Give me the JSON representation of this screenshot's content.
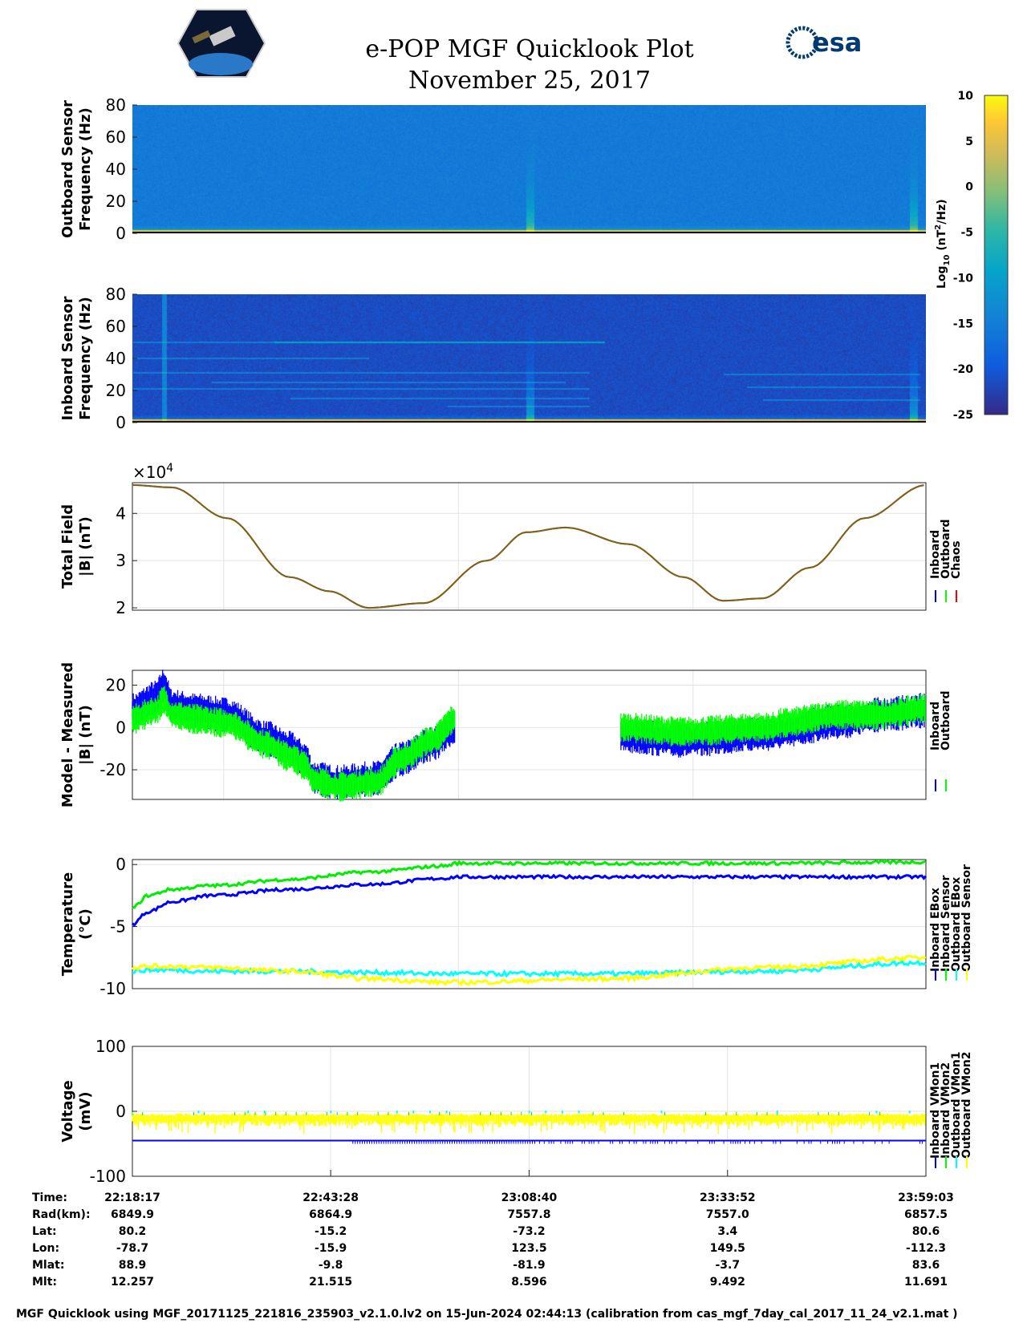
{
  "header": {
    "title": "e-POP MGF Quicklook Plot",
    "date": "November 25, 2017",
    "left_logo": "cassiope-mission-logo",
    "right_logo": "esa",
    "right_logo_text": "esa"
  },
  "colors": {
    "inboard": "#0000ff",
    "outboard": "#00ff00",
    "chaos": "#ff0000",
    "inboard_ebox": "#0000ff",
    "inboard_sensor": "#00ff00",
    "outboard_ebox": "#00ffff",
    "outboard_sensor": "#ffff00"
  },
  "chart_data": [
    {
      "type": "heatmap",
      "name": "outboard-spectrogram",
      "ylabel": "Outboard Sensor\nFrequency (Hz)",
      "ylabel_lines": [
        "Outboard Sensor",
        "Frequency (Hz)"
      ],
      "ylim": [
        0,
        80
      ],
      "yticks": [
        "0",
        "20",
        "40",
        "60",
        "80"
      ],
      "clim": [
        -25,
        10
      ],
      "note": "mostly ~-17 log10 power, strong near 0 Hz, bursts near 23:08 and 23:58"
    },
    {
      "type": "heatmap",
      "name": "inboard-spectrogram",
      "ylabel_lines": [
        "Inboard Sensor",
        "Frequency (Hz)"
      ],
      "ylim": [
        0,
        80
      ],
      "yticks": [
        "0",
        "20",
        "40",
        "60",
        "80"
      ],
      "clim": [
        -25,
        10
      ],
      "note": "background ~-22, harmonic lines near 10-50 Hz"
    },
    {
      "type": "colorbar",
      "label": "Log10 (nT2/Hz)",
      "label_main": "Log",
      "label_sub": "10",
      "label_rest": " (nT",
      "label_sup": "2",
      "label_end": "/Hz)",
      "ticks": [
        "10",
        "5",
        "0",
        "-5",
        "-10",
        "-15",
        "-20",
        "-25"
      ],
      "range": [
        -25,
        10
      ],
      "colormap": "parula"
    },
    {
      "type": "line",
      "name": "total-field",
      "ylabel_lines": [
        "Total Field",
        "|B| (nT)"
      ],
      "exponent_label": "×10",
      "exponent": "4",
      "ylim": [
        1.95,
        4.65
      ],
      "yticks": [
        "2",
        "3",
        "4"
      ],
      "x_minutes": [
        0,
        5,
        12,
        20,
        25,
        30,
        37,
        45,
        50,
        55,
        63,
        70,
        75,
        80,
        86,
        93,
        100.77
      ],
      "series": [
        {
          "name": "Inboard",
          "values": [
            4.6,
            4.55,
            3.9,
            2.65,
            2.35,
            2.0,
            2.1,
            3.0,
            3.6,
            3.7,
            3.35,
            2.65,
            2.15,
            2.2,
            2.85,
            3.9,
            4.6
          ]
        },
        {
          "name": "Outboard",
          "values": [
            4.6,
            4.55,
            3.9,
            2.65,
            2.35,
            2.0,
            2.1,
            3.0,
            3.6,
            3.7,
            3.35,
            2.65,
            2.15,
            2.2,
            2.85,
            3.9,
            4.6
          ]
        },
        {
          "name": "Chaos",
          "values": [
            4.6,
            4.55,
            3.9,
            2.65,
            2.35,
            2.0,
            2.1,
            3.0,
            3.6,
            3.7,
            3.35,
            2.65,
            2.15,
            2.2,
            2.85,
            3.9,
            4.6
          ]
        }
      ],
      "legend": [
        "Inboard",
        "Outboard",
        "Chaos"
      ],
      "legend_placement": "right"
    },
    {
      "type": "line",
      "name": "model-minus-measured",
      "ylabel_lines": [
        "Model - Measured",
        "|B| (nT)"
      ],
      "ylim": [
        -34,
        27
      ],
      "yticks": [
        "-20",
        "0",
        "20"
      ],
      "x_minutes": [
        0,
        3,
        4,
        5,
        8,
        12,
        17,
        20,
        22,
        23,
        26,
        31,
        34,
        38,
        41,
        42,
        82,
        90,
        95,
        100.77
      ],
      "series": [
        {
          "name": "Inboard",
          "values": [
            8,
            14,
            20,
            10,
            8,
            6,
            -5,
            -10,
            -15,
            -24,
            -26,
            -24,
            -15,
            -8,
            0,
            null,
            -2,
            3,
            6,
            8
          ]
        },
        {
          "name": "Outboard",
          "values": [
            4,
            8,
            13,
            6,
            4,
            2,
            -8,
            -14,
            -18,
            -25,
            -28,
            -26,
            -15,
            -6,
            4,
            null,
            2,
            6,
            6,
            9
          ]
        }
      ],
      "gap_minutes": [
        41.5,
        62
      ],
      "legend": [
        "Inboard",
        "Outboard"
      ],
      "legend_placement": "right"
    },
    {
      "type": "line",
      "name": "temperature",
      "ylabel_lines": [
        "Temperature",
        "(°C)"
      ],
      "ylim": [
        -10,
        0.4
      ],
      "yticks": [
        "-10",
        "-5",
        "0"
      ],
      "x_minutes": [
        0,
        2,
        5,
        10,
        20,
        30,
        40,
        41,
        60,
        80,
        100.77
      ],
      "series": [
        {
          "name": "Inboard EBox",
          "values": [
            -4.8,
            -3.8,
            -3.0,
            -2.5,
            -2.0,
            -1.6,
            -1.1,
            -1.0,
            -1.0,
            -1.0,
            -1.0
          ]
        },
        {
          "name": "Inboard Sensor",
          "values": [
            -3.5,
            -2.5,
            -2.0,
            -1.7,
            -1.2,
            -0.6,
            -0.1,
            0.1,
            0.1,
            0.1,
            0.2
          ]
        },
        {
          "name": "Outboard EBox",
          "values": [
            -8.6,
            -8.5,
            -8.5,
            -8.6,
            -8.6,
            -8.7,
            -8.8,
            -8.8,
            -8.8,
            -8.6,
            -7.9
          ]
        },
        {
          "name": "Outboard Sensor",
          "values": [
            -8.3,
            -8.2,
            -8.2,
            -8.3,
            -8.6,
            -9.2,
            -9.5,
            -9.5,
            -9.2,
            -8.3,
            -7.5
          ]
        }
      ],
      "legend": [
        "Inboard EBox",
        "Inboard Sensor",
        "Outboard EBox",
        "Outboard Sensor"
      ],
      "legend_placement": "right"
    },
    {
      "type": "line",
      "name": "voltage",
      "ylabel_lines": [
        "Voltage",
        "(mV)"
      ],
      "ylim": [
        -100,
        100
      ],
      "yticks": [
        "-100",
        "0",
        "100"
      ],
      "x_minutes": [
        0,
        100.77
      ],
      "series": [
        {
          "name": "Inboard VMon1",
          "values": [
            -45,
            -45
          ]
        },
        {
          "name": "Inboard VMon2",
          "values": [
            -5,
            -5
          ]
        },
        {
          "name": "Outboard VMon1",
          "values": [
            -3,
            -3
          ]
        },
        {
          "name": "Outboard VMon2",
          "values": [
            -12,
            -10
          ]
        }
      ],
      "legend": [
        "Inboard VMon1",
        "Inboard VMon2",
        "Outboard VMon1",
        "Outboard VMon2"
      ],
      "legend_placement": "right"
    }
  ],
  "ephemeris": {
    "labels": [
      "Time:",
      "Rad(km):",
      "Lat:",
      "Lon:",
      "Mlat:",
      "Mlt:"
    ],
    "columns": [
      [
        "22:18:17",
        "6849.9",
        "80.2",
        "-78.7",
        "88.9",
        "12.257"
      ],
      [
        "22:43:28",
        "6864.9",
        "-15.2",
        "-15.9",
        "-9.8",
        "21.515"
      ],
      [
        "23:08:40",
        "7557.8",
        "-73.2",
        "123.5",
        "-81.9",
        "8.596"
      ],
      [
        "23:33:52",
        "7557.0",
        "3.4",
        "149.5",
        "-3.7",
        "9.492"
      ],
      [
        "23:59:03",
        "6857.5",
        "80.6",
        "-112.3",
        "83.6",
        "11.691"
      ]
    ]
  },
  "footer": "MGF Quicklook using MGF_20171125_221816_235903_v2.1.0.lv2 on 15-Jun-2024 02:44:13 (calibration from cas_mgf_7day_cal_2017_11_24_v2.1.mat )"
}
